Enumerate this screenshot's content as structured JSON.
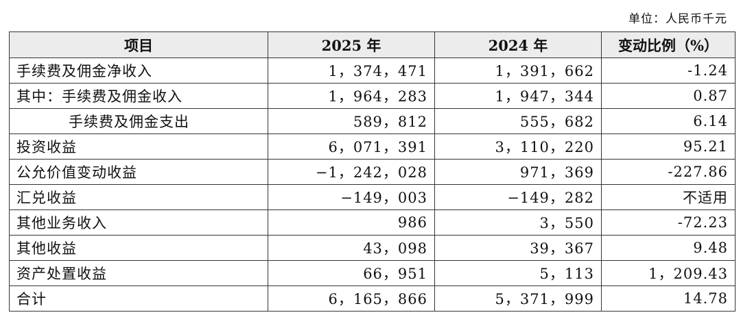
{
  "unit_note": "单位：人民币千元",
  "headers": {
    "item": "项目",
    "y2025": "2025 年",
    "y2024": "2024 年",
    "change": "变动比例（%）"
  },
  "rows": [
    {
      "label": "手续费及佣金净收入",
      "v2025": "1，374，471",
      "v2024": "1，391，662",
      "change": "-1.24"
    },
    {
      "label": "其中：手续费及佣金收入",
      "v2025": "1，964，283",
      "v2024": "1，947，344",
      "change": "0.87"
    },
    {
      "label": "手续费及佣金支出",
      "v2025": "589，812",
      "v2024": "555，682",
      "change": "6.14"
    },
    {
      "label": "投资收益",
      "v2025": "6，071，391",
      "v2024": "3，110，220",
      "change": "95.21"
    },
    {
      "label": "公允价值变动收益",
      "v2025": "−1，242，028",
      "v2024": "971，369",
      "change": "-227.86"
    },
    {
      "label": "汇兑收益",
      "v2025": "−149，003",
      "v2024": "−149，282",
      "change": "不适用"
    },
    {
      "label": "其他业务收入",
      "v2025": "986",
      "v2024": "3，550",
      "change": "-72.23"
    },
    {
      "label": "其他收益",
      "v2025": "43，098",
      "v2024": "39，367",
      "change": "9.48"
    },
    {
      "label": "资产处置收益",
      "v2025": "66，951",
      "v2024": "5，113",
      "change": "1，209.43"
    },
    {
      "label": "合计",
      "v2025": "6，165，866",
      "v2024": "5，371，999",
      "change": "14.78"
    }
  ]
}
